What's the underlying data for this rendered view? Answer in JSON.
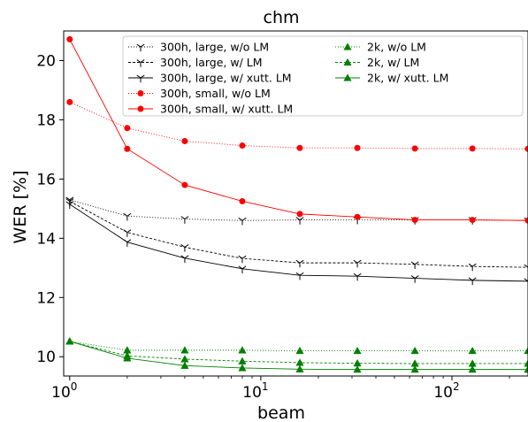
{
  "chart_data": {
    "type": "line",
    "title": "chm",
    "xlabel": "beam",
    "ylabel": "WER [%]",
    "xscale": "log",
    "xlim": [
      0.93,
      250
    ],
    "ylim": [
      9.35,
      21.0
    ],
    "xticks": [
      {
        "value": 1,
        "base": "10",
        "exp": "0"
      },
      {
        "value": 10,
        "base": "10",
        "exp": "1"
      },
      {
        "value": 100,
        "base": "10",
        "exp": "2"
      }
    ],
    "yticks": [
      10,
      12,
      14,
      16,
      18,
      20
    ],
    "legend_position": "top-right",
    "legend_columns": 2,
    "series": [
      {
        "name": "300h, large, w/o LM",
        "color": "#000000",
        "dash": "1,2",
        "marker": "tri_down",
        "x": [
          1,
          2,
          4,
          8,
          16,
          32,
          64,
          128,
          250
        ],
        "values": [
          15.3,
          14.75,
          14.65,
          14.6,
          14.62,
          14.63,
          14.62,
          14.62,
          14.6
        ]
      },
      {
        "name": "300h, large, w/ LM",
        "color": "#000000",
        "dash": "3,2",
        "marker": "tri_down",
        "x": [
          1,
          2,
          4,
          8,
          16,
          32,
          64,
          128,
          250
        ],
        "values": [
          15.25,
          14.2,
          13.7,
          13.32,
          13.17,
          13.17,
          13.12,
          13.05,
          13.02
        ]
      },
      {
        "name": "300h, large, w/ xutt. LM",
        "color": "#000000",
        "dash": "",
        "marker": "tri_down",
        "x": [
          1,
          2,
          4,
          8,
          16,
          32,
          64,
          128,
          250
        ],
        "values": [
          15.15,
          13.87,
          13.33,
          12.97,
          12.75,
          12.72,
          12.65,
          12.58,
          12.55
        ]
      },
      {
        "name": "300h, small, w/o LM",
        "color": "#ff0000",
        "dash": "1,2",
        "marker": "circle",
        "x": [
          1,
          2,
          4,
          8,
          16,
          32,
          64,
          128,
          250
        ],
        "values": [
          18.6,
          17.72,
          17.28,
          17.13,
          17.05,
          17.05,
          17.03,
          17.03,
          17.02
        ]
      },
      {
        "name": "300h, small, w/ xutt. LM",
        "color": "#ff0000",
        "dash": "",
        "marker": "circle",
        "x": [
          1,
          2,
          4,
          8,
          16,
          32,
          64,
          128,
          250
        ],
        "values": [
          20.72,
          17.02,
          15.8,
          15.25,
          14.82,
          14.72,
          14.62,
          14.62,
          14.6
        ]
      },
      {
        "name": "2k, w/o LM",
        "color": "#008000",
        "dash": "1,2",
        "marker": "triangle",
        "x": [
          1,
          2,
          4,
          8,
          16,
          32,
          64,
          128,
          250
        ],
        "values": [
          10.52,
          10.22,
          10.22,
          10.22,
          10.2,
          10.2,
          10.2,
          10.2,
          10.2
        ]
      },
      {
        "name": "2k, w/ LM",
        "color": "#008000",
        "dash": "3,2",
        "marker": "triangle",
        "x": [
          1,
          2,
          4,
          8,
          16,
          32,
          64,
          128,
          250
        ],
        "values": [
          10.52,
          10.03,
          9.92,
          9.85,
          9.8,
          9.78,
          9.77,
          9.77,
          9.77
        ]
      },
      {
        "name": "2k, w/ xutt. LM",
        "color": "#008000",
        "dash": "",
        "marker": "triangle",
        "x": [
          1,
          2,
          4,
          8,
          16,
          32,
          64,
          128,
          250
        ],
        "values": [
          10.52,
          9.95,
          9.7,
          9.62,
          9.58,
          9.57,
          9.57,
          9.57,
          9.57
        ]
      }
    ]
  }
}
